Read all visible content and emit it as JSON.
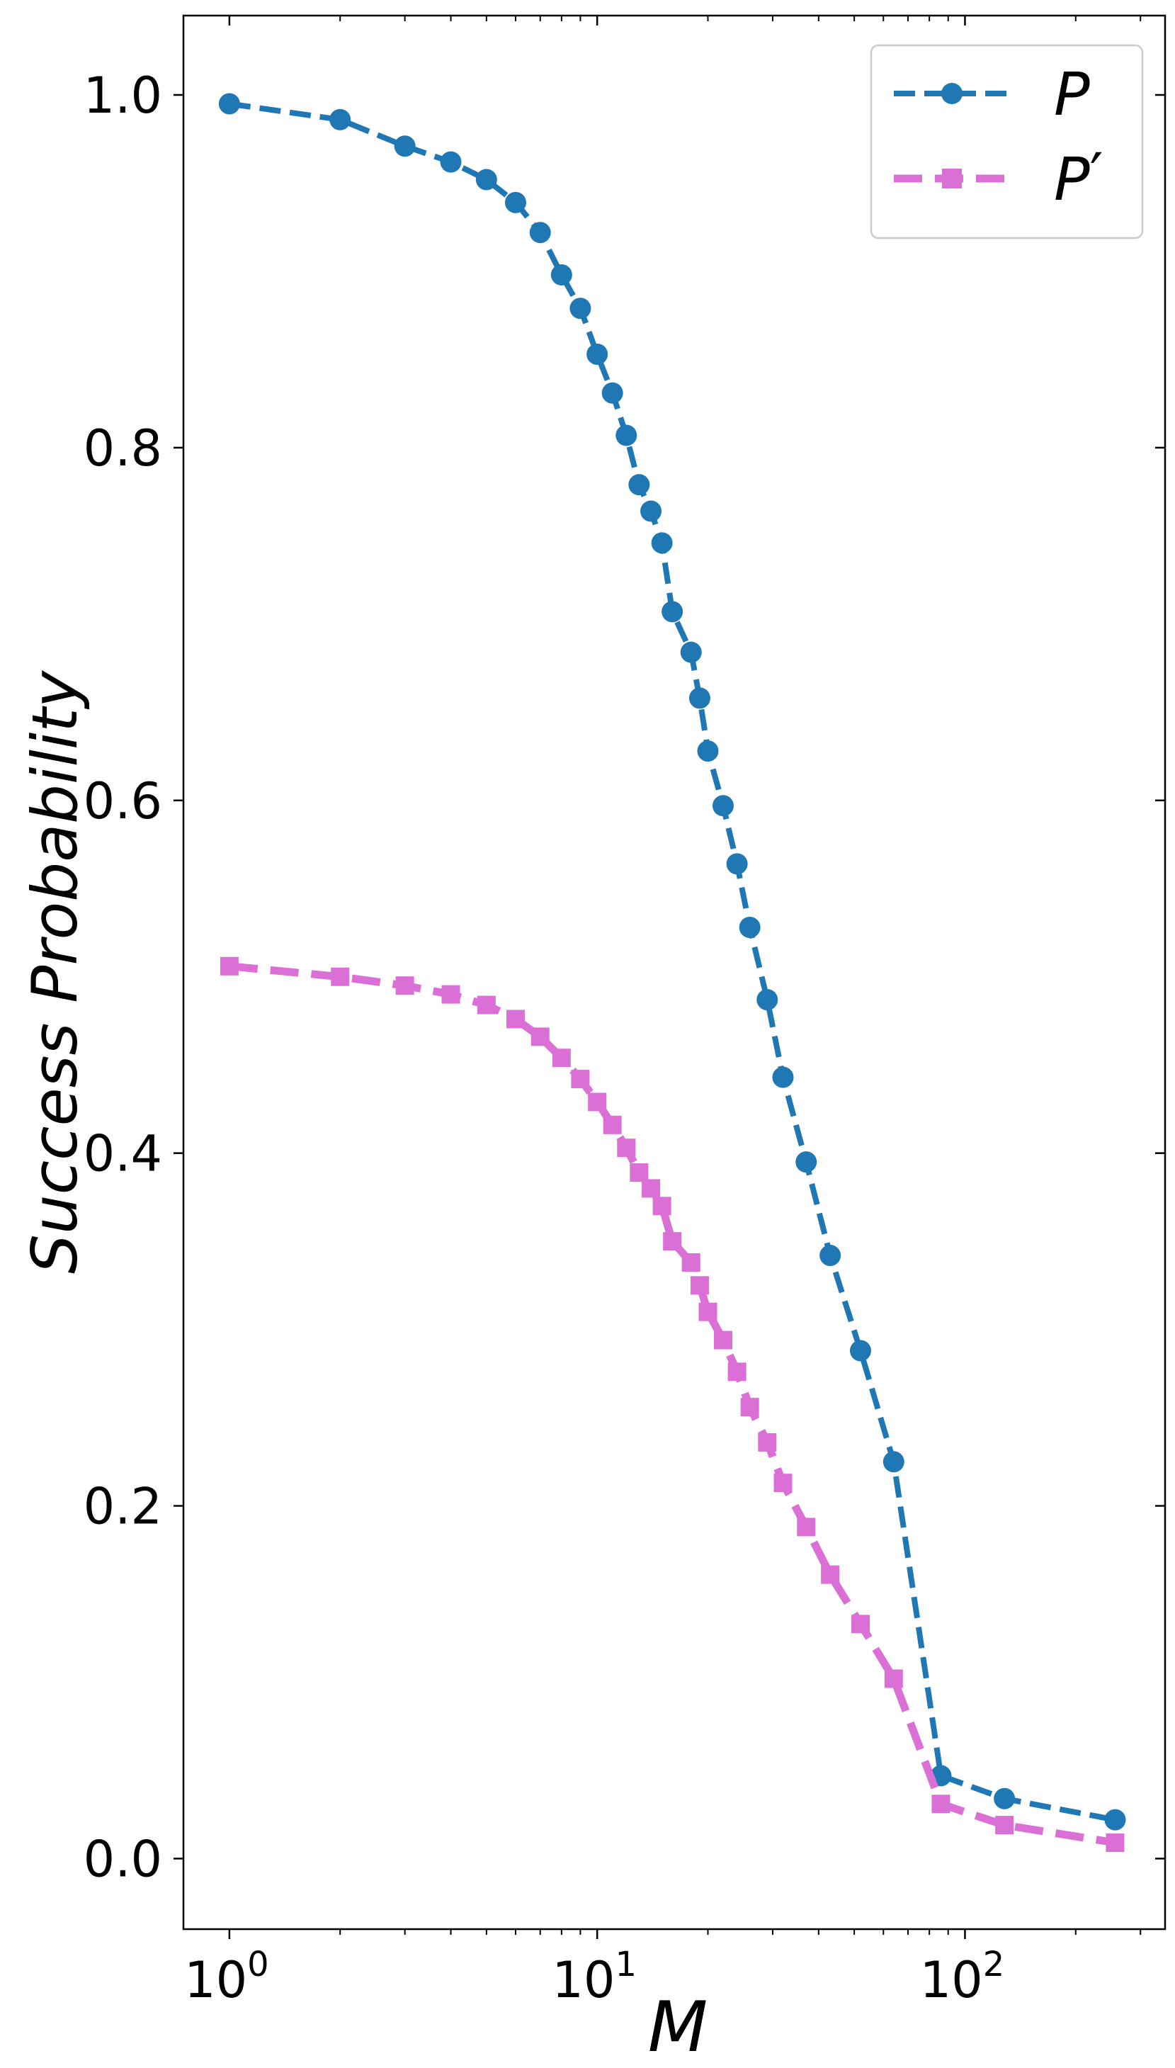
{
  "chart_data": {
    "type": "line",
    "xlabel": "M",
    "ylabel": "Success Probability",
    "xscale": "log",
    "xlim": [
      0.75,
      350
    ],
    "ylim": [
      -0.04,
      1.045
    ],
    "x_ticks": [
      {
        "value": 1,
        "base": "10",
        "exp": "0"
      },
      {
        "value": 10,
        "base": "10",
        "exp": "1"
      },
      {
        "value": 100,
        "base": "10",
        "exp": "2"
      }
    ],
    "y_ticks": [
      {
        "value": 0.0,
        "label": "0.0"
      },
      {
        "value": 0.2,
        "label": "0.2"
      },
      {
        "value": 0.4,
        "label": "0.4"
      },
      {
        "value": 0.6,
        "label": "0.6"
      },
      {
        "value": 0.8,
        "label": "0.8"
      },
      {
        "value": 1.0,
        "label": "1.0"
      }
    ],
    "grid": false,
    "legend_position": "top-right",
    "series": [
      {
        "name": "P",
        "name_prime": "",
        "color": "#1f77b4",
        "marker": "circle",
        "linestyle": "dashed",
        "points": [
          [
            1,
            0.995
          ],
          [
            2,
            0.986
          ],
          [
            3,
            0.971
          ],
          [
            4,
            0.962
          ],
          [
            5,
            0.952
          ],
          [
            6,
            0.939
          ],
          [
            7,
            0.922
          ],
          [
            8,
            0.898
          ],
          [
            9,
            0.879
          ],
          [
            10,
            0.853
          ],
          [
            11,
            0.831
          ],
          [
            12,
            0.807
          ],
          [
            13,
            0.779
          ],
          [
            14,
            0.764
          ],
          [
            15,
            0.746
          ],
          [
            16,
            0.707
          ],
          [
            18,
            0.684
          ],
          [
            19,
            0.658
          ],
          [
            20,
            0.628
          ],
          [
            22,
            0.597
          ],
          [
            24,
            0.564
          ],
          [
            26,
            0.528
          ],
          [
            29,
            0.487
          ],
          [
            32,
            0.443
          ],
          [
            37,
            0.395
          ],
          [
            43,
            0.342
          ],
          [
            52,
            0.288
          ],
          [
            64,
            0.225
          ],
          [
            86,
            0.047
          ],
          [
            128,
            0.034
          ],
          [
            256,
            0.022
          ]
        ]
      },
      {
        "name": "P",
        "name_prime": "′",
        "color": "#da70d6",
        "marker": "square",
        "linestyle": "dashed",
        "points": [
          [
            1,
            0.506
          ],
          [
            2,
            0.5
          ],
          [
            3,
            0.495
          ],
          [
            4,
            0.49
          ],
          [
            5,
            0.484
          ],
          [
            6,
            0.476
          ],
          [
            7,
            0.466
          ],
          [
            8,
            0.454
          ],
          [
            9,
            0.442
          ],
          [
            10,
            0.429
          ],
          [
            11,
            0.416
          ],
          [
            12,
            0.403
          ],
          [
            13,
            0.389
          ],
          [
            14,
            0.38
          ],
          [
            15,
            0.37
          ],
          [
            16,
            0.35
          ],
          [
            18,
            0.338
          ],
          [
            19,
            0.325
          ],
          [
            20,
            0.31
          ],
          [
            22,
            0.294
          ],
          [
            24,
            0.276
          ],
          [
            26,
            0.256
          ],
          [
            29,
            0.236
          ],
          [
            32,
            0.213
          ],
          [
            37,
            0.188
          ],
          [
            43,
            0.161
          ],
          [
            52,
            0.133
          ],
          [
            64,
            0.102
          ],
          [
            86,
            0.031
          ],
          [
            128,
            0.019
          ],
          [
            256,
            0.009
          ]
        ]
      }
    ]
  }
}
